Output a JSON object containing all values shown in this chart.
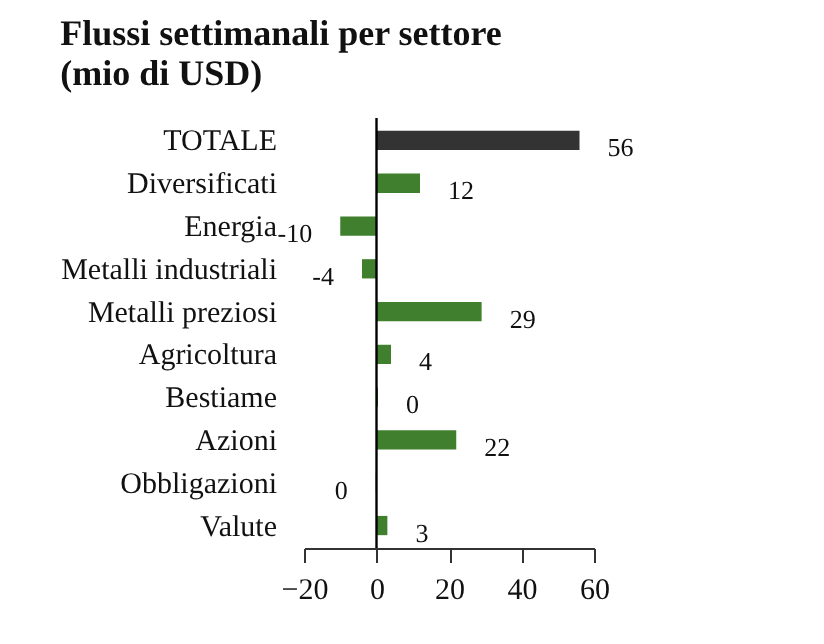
{
  "chart_data": {
    "type": "bar",
    "orientation": "horizontal",
    "title": [
      "Flussi settimanali per settore",
      "(mio di USD)"
    ],
    "categories": [
      "TOTALE",
      "Diversificati",
      "Energia",
      "Metalli industriali",
      "Metalli preziosi",
      "Agricoltura",
      "Bestiame",
      "Azioni",
      "Obbligazioni",
      "Valute"
    ],
    "values": [
      56,
      12,
      -10,
      -4,
      29,
      4,
      0.4,
      22,
      -0.2,
      3
    ],
    "value_labels": [
      "56",
      "12",
      "-10",
      "-4",
      "29",
      "4",
      "0",
      "22",
      "0",
      "3"
    ],
    "colors": [
      "#333333",
      "#3f7f2e",
      "#3f7f2e",
      "#3f7f2e",
      "#3f7f2e",
      "#3f7f2e",
      "#3f7f2e",
      "#3f7f2e",
      "#3f7f2e",
      "#3f7f2e"
    ],
    "xlim": [
      -20,
      60
    ],
    "xticks": [
      -20,
      0,
      20,
      40,
      60
    ],
    "ref_lines": [
      {
        "axis": "x",
        "value": 0,
        "color": "#000000"
      }
    ],
    "grid": false
  }
}
